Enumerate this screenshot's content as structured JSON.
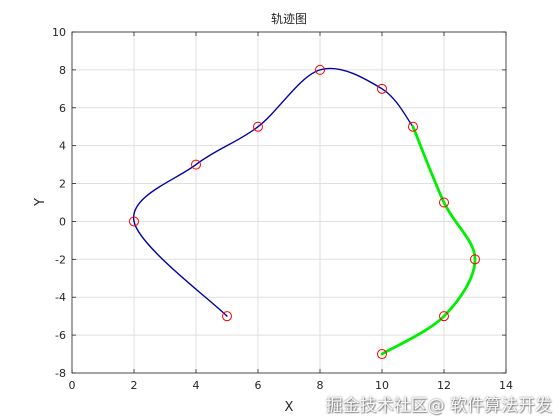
{
  "chart_data": {
    "type": "line",
    "title": "轨迹图",
    "xlabel": "X",
    "ylabel": "Y",
    "xlim": [
      0,
      14
    ],
    "ylim": [
      -8,
      10
    ],
    "xticks": [
      "0",
      "2",
      "4",
      "6",
      "8",
      "10",
      "12",
      "14"
    ],
    "yticks": [
      "-8",
      "-6",
      "-4",
      "-2",
      "0",
      "2",
      "4",
      "6",
      "8",
      "10"
    ],
    "grid": true,
    "waypoints": {
      "x": [
        5,
        2,
        4,
        6,
        8,
        10,
        11,
        12,
        13,
        12,
        10
      ],
      "y": [
        -5,
        0,
        3,
        5,
        8,
        7,
        5,
        1,
        -2,
        -5,
        -7
      ]
    },
    "series": [
      {
        "color": "#0000a8",
        "x": [
          5,
          2,
          4,
          6,
          8,
          10,
          11
        ],
        "y": [
          -5,
          0,
          3,
          5,
          8,
          7,
          5
        ]
      },
      {
        "color": "#00ee00",
        "x": [
          11,
          12,
          13,
          12,
          10
        ],
        "y": [
          5,
          1,
          -2,
          -5,
          -7
        ]
      }
    ],
    "marker_color": "#ff0000"
  },
  "watermark": "掘金技术社区@ 软件算法开发"
}
